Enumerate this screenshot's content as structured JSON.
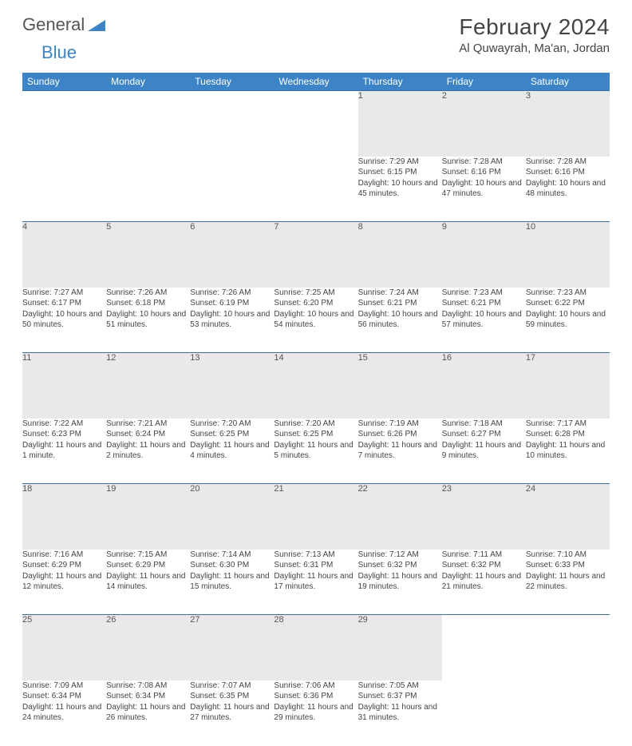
{
  "brand": {
    "part1": "General",
    "part2": "Blue"
  },
  "title": "February 2024",
  "location": "Al Quwayrah, Ma'an, Jordan",
  "day_headers": [
    "Sunday",
    "Monday",
    "Tuesday",
    "Wednesday",
    "Thursday",
    "Friday",
    "Saturday"
  ],
  "colors": {
    "header_bg": "#3d84c6",
    "header_text": "#ffffff",
    "daynum_bg": "#e9e9e9",
    "row_border": "#3d6ea0",
    "text": "#444444"
  },
  "weeks": [
    [
      null,
      null,
      null,
      null,
      {
        "n": "1",
        "sr": "7:29 AM",
        "ss": "6:15 PM",
        "dl": "10 hours and 45 minutes."
      },
      {
        "n": "2",
        "sr": "7:28 AM",
        "ss": "6:16 PM",
        "dl": "10 hours and 47 minutes."
      },
      {
        "n": "3",
        "sr": "7:28 AM",
        "ss": "6:16 PM",
        "dl": "10 hours and 48 minutes."
      }
    ],
    [
      {
        "n": "4",
        "sr": "7:27 AM",
        "ss": "6:17 PM",
        "dl": "10 hours and 50 minutes."
      },
      {
        "n": "5",
        "sr": "7:26 AM",
        "ss": "6:18 PM",
        "dl": "10 hours and 51 minutes."
      },
      {
        "n": "6",
        "sr": "7:26 AM",
        "ss": "6:19 PM",
        "dl": "10 hours and 53 minutes."
      },
      {
        "n": "7",
        "sr": "7:25 AM",
        "ss": "6:20 PM",
        "dl": "10 hours and 54 minutes."
      },
      {
        "n": "8",
        "sr": "7:24 AM",
        "ss": "6:21 PM",
        "dl": "10 hours and 56 minutes."
      },
      {
        "n": "9",
        "sr": "7:23 AM",
        "ss": "6:21 PM",
        "dl": "10 hours and 57 minutes."
      },
      {
        "n": "10",
        "sr": "7:23 AM",
        "ss": "6:22 PM",
        "dl": "10 hours and 59 minutes."
      }
    ],
    [
      {
        "n": "11",
        "sr": "7:22 AM",
        "ss": "6:23 PM",
        "dl": "11 hours and 1 minute."
      },
      {
        "n": "12",
        "sr": "7:21 AM",
        "ss": "6:24 PM",
        "dl": "11 hours and 2 minutes."
      },
      {
        "n": "13",
        "sr": "7:20 AM",
        "ss": "6:25 PM",
        "dl": "11 hours and 4 minutes."
      },
      {
        "n": "14",
        "sr": "7:20 AM",
        "ss": "6:25 PM",
        "dl": "11 hours and 5 minutes."
      },
      {
        "n": "15",
        "sr": "7:19 AM",
        "ss": "6:26 PM",
        "dl": "11 hours and 7 minutes."
      },
      {
        "n": "16",
        "sr": "7:18 AM",
        "ss": "6:27 PM",
        "dl": "11 hours and 9 minutes."
      },
      {
        "n": "17",
        "sr": "7:17 AM",
        "ss": "6:28 PM",
        "dl": "11 hours and 10 minutes."
      }
    ],
    [
      {
        "n": "18",
        "sr": "7:16 AM",
        "ss": "6:29 PM",
        "dl": "11 hours and 12 minutes."
      },
      {
        "n": "19",
        "sr": "7:15 AM",
        "ss": "6:29 PM",
        "dl": "11 hours and 14 minutes."
      },
      {
        "n": "20",
        "sr": "7:14 AM",
        "ss": "6:30 PM",
        "dl": "11 hours and 15 minutes."
      },
      {
        "n": "21",
        "sr": "7:13 AM",
        "ss": "6:31 PM",
        "dl": "11 hours and 17 minutes."
      },
      {
        "n": "22",
        "sr": "7:12 AM",
        "ss": "6:32 PM",
        "dl": "11 hours and 19 minutes."
      },
      {
        "n": "23",
        "sr": "7:11 AM",
        "ss": "6:32 PM",
        "dl": "11 hours and 21 minutes."
      },
      {
        "n": "24",
        "sr": "7:10 AM",
        "ss": "6:33 PM",
        "dl": "11 hours and 22 minutes."
      }
    ],
    [
      {
        "n": "25",
        "sr": "7:09 AM",
        "ss": "6:34 PM",
        "dl": "11 hours and 24 minutes."
      },
      {
        "n": "26",
        "sr": "7:08 AM",
        "ss": "6:34 PM",
        "dl": "11 hours and 26 minutes."
      },
      {
        "n": "27",
        "sr": "7:07 AM",
        "ss": "6:35 PM",
        "dl": "11 hours and 27 minutes."
      },
      {
        "n": "28",
        "sr": "7:06 AM",
        "ss": "6:36 PM",
        "dl": "11 hours and 29 minutes."
      },
      {
        "n": "29",
        "sr": "7:05 AM",
        "ss": "6:37 PM",
        "dl": "11 hours and 31 minutes."
      },
      null,
      null
    ]
  ],
  "labels": {
    "sunrise": "Sunrise:",
    "sunset": "Sunset:",
    "daylight": "Daylight:"
  }
}
